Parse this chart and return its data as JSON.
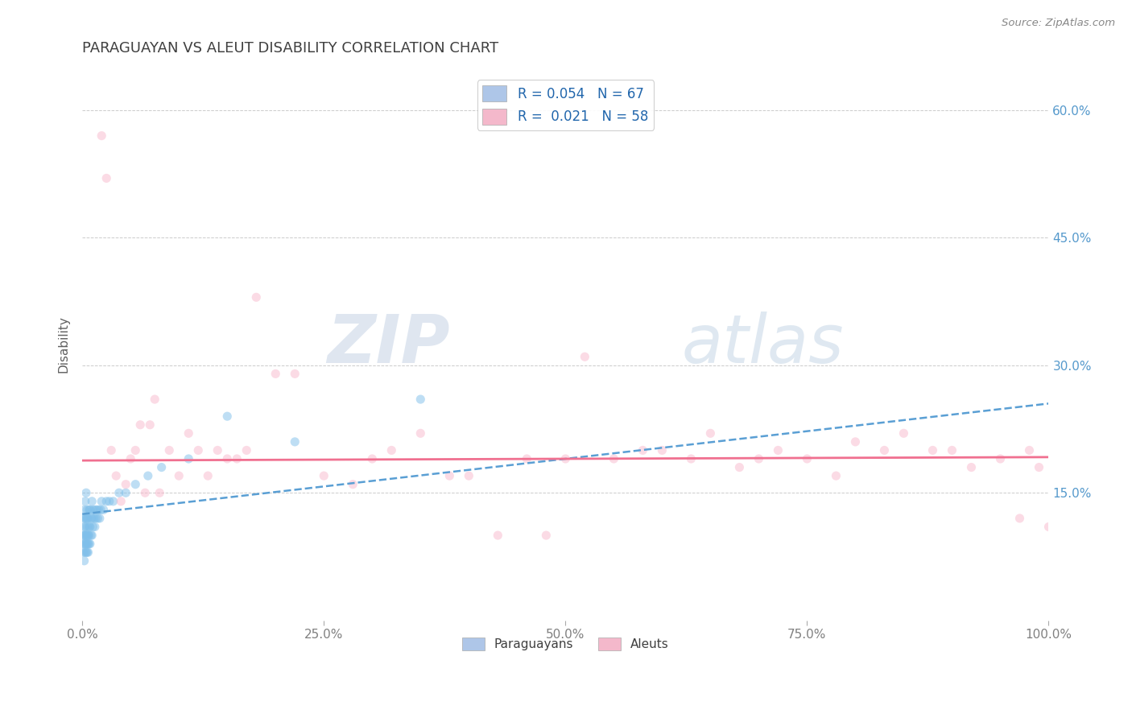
{
  "title": "PARAGUAYAN VS ALEUT DISABILITY CORRELATION CHART",
  "source_text": "Source: ZipAtlas.com",
  "ylabel": "Disability",
  "xlim": [
    0.0,
    1.0
  ],
  "ylim": [
    0.0,
    0.65
  ],
  "xticks": [
    0.0,
    0.25,
    0.5,
    0.75,
    1.0
  ],
  "xtick_labels": [
    "0.0%",
    "25.0%",
    "50.0%",
    "75.0%",
    "100.0%"
  ],
  "yticks": [
    0.15,
    0.3,
    0.45,
    0.6
  ],
  "ytick_labels": [
    "15.0%",
    "30.0%",
    "45.0%",
    "60.0%"
  ],
  "paraguayan_x": [
    0.001,
    0.001,
    0.001,
    0.001,
    0.002,
    0.002,
    0.002,
    0.002,
    0.002,
    0.003,
    0.003,
    0.003,
    0.003,
    0.003,
    0.003,
    0.004,
    0.004,
    0.004,
    0.004,
    0.004,
    0.005,
    0.005,
    0.005,
    0.005,
    0.005,
    0.005,
    0.006,
    0.006,
    0.006,
    0.006,
    0.007,
    0.007,
    0.007,
    0.007,
    0.008,
    0.008,
    0.008,
    0.009,
    0.009,
    0.01,
    0.01,
    0.01,
    0.011,
    0.011,
    0.012,
    0.013,
    0.013,
    0.014,
    0.015,
    0.016,
    0.017,
    0.018,
    0.019,
    0.02,
    0.022,
    0.025,
    0.028,
    0.032,
    0.038,
    0.045,
    0.055,
    0.068,
    0.082,
    0.11,
    0.15,
    0.22,
    0.35
  ],
  "paraguayan_y": [
    0.08,
    0.09,
    0.1,
    0.12,
    0.07,
    0.09,
    0.1,
    0.11,
    0.13,
    0.08,
    0.09,
    0.1,
    0.11,
    0.12,
    0.14,
    0.08,
    0.09,
    0.1,
    0.12,
    0.15,
    0.08,
    0.09,
    0.1,
    0.11,
    0.12,
    0.13,
    0.08,
    0.09,
    0.1,
    0.12,
    0.09,
    0.1,
    0.11,
    0.13,
    0.09,
    0.11,
    0.13,
    0.1,
    0.12,
    0.1,
    0.12,
    0.14,
    0.11,
    0.13,
    0.12,
    0.11,
    0.13,
    0.12,
    0.13,
    0.12,
    0.13,
    0.12,
    0.13,
    0.14,
    0.13,
    0.14,
    0.14,
    0.14,
    0.15,
    0.15,
    0.16,
    0.17,
    0.18,
    0.19,
    0.24,
    0.21,
    0.26
  ],
  "aleut_x": [
    0.02,
    0.025,
    0.03,
    0.035,
    0.04,
    0.045,
    0.05,
    0.055,
    0.06,
    0.065,
    0.07,
    0.075,
    0.08,
    0.09,
    0.1,
    0.11,
    0.12,
    0.13,
    0.14,
    0.15,
    0.16,
    0.17,
    0.18,
    0.2,
    0.22,
    0.25,
    0.28,
    0.3,
    0.32,
    0.35,
    0.38,
    0.4,
    0.43,
    0.46,
    0.5,
    0.52,
    0.55,
    0.58,
    0.6,
    0.63,
    0.65,
    0.68,
    0.7,
    0.72,
    0.75,
    0.78,
    0.8,
    0.83,
    0.85,
    0.88,
    0.9,
    0.92,
    0.95,
    0.97,
    0.98,
    0.99,
    1.0,
    0.48
  ],
  "aleut_y": [
    0.57,
    0.52,
    0.2,
    0.17,
    0.14,
    0.16,
    0.19,
    0.2,
    0.23,
    0.15,
    0.23,
    0.26,
    0.15,
    0.2,
    0.17,
    0.22,
    0.2,
    0.17,
    0.2,
    0.19,
    0.19,
    0.2,
    0.38,
    0.29,
    0.29,
    0.17,
    0.16,
    0.19,
    0.2,
    0.22,
    0.17,
    0.17,
    0.1,
    0.19,
    0.19,
    0.31,
    0.19,
    0.2,
    0.2,
    0.19,
    0.22,
    0.18,
    0.19,
    0.2,
    0.19,
    0.17,
    0.21,
    0.2,
    0.22,
    0.2,
    0.2,
    0.18,
    0.19,
    0.12,
    0.2,
    0.18,
    0.11,
    0.1
  ],
  "blue_trendline_x0": 0.0,
  "blue_trendline_y0": 0.125,
  "blue_trendline_x1": 1.0,
  "blue_trendline_y1": 0.255,
  "pink_trendline_x0": 0.0,
  "pink_trendline_y0": 0.188,
  "pink_trendline_x1": 1.0,
  "pink_trendline_y1": 0.192,
  "blue_color": "#7fbfea",
  "pink_color": "#f9b8cc",
  "blue_line_color": "#5a9fd4",
  "pink_line_color": "#f07090",
  "scatter_alpha": 0.5,
  "scatter_size": 65,
  "background_color": "#ffffff",
  "grid_color": "#cccccc",
  "watermark_zip_color": "#c8d4e8",
  "watermark_atlas_color": "#b8cce0",
  "title_color": "#404040",
  "axis_label_color": "#606060",
  "tick_color": "#808080",
  "right_tick_color": "#5599cc",
  "source_color": "#888888"
}
